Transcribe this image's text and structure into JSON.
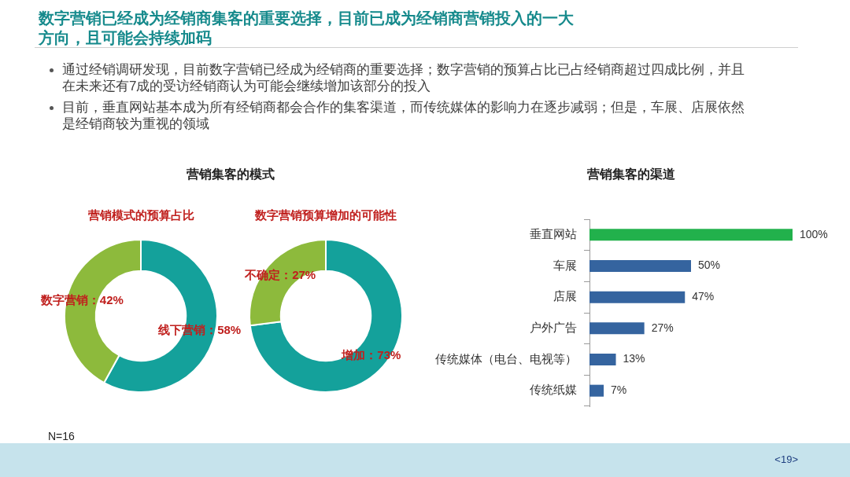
{
  "chart_data": [
    {
      "type": "donut",
      "title": "营销模式的预算占比",
      "categories": [
        "线下营销",
        "数字营销"
      ],
      "values": [
        58,
        42
      ],
      "colors": [
        "#14a19b",
        "#8dba3c"
      ],
      "value_labels": [
        "58%",
        "42%"
      ],
      "annotations": [
        "数字营销已经成为经销商集客的重要选择，目前已成为经销商营销投入的一大方向，且可能会持续加码",
        "通过经销调研发现，目前数字营销已经成为经销商的重要选择；数字营销的预算占比已占经销商超过四成比例，并且在未来还有7成的受访经销商认为可能会继续增加该部分的投入",
        "目前，垂直网站基本成为所有经销商都会合作的集客渠道，而传统媒体的影响力在逐步减弱；但是，车展、店展依然是经销商较为重视的领域",
        "营销集客的模式",
        "N=16",
        "<19>"
      ]
    },
    {
      "type": "donut",
      "title": "数字营销预算增加的可能性",
      "categories": [
        "增加",
        "不确定"
      ],
      "values": [
        73,
        27
      ],
      "colors": [
        "#14a19b",
        "#8dba3c"
      ],
      "value_labels": [
        "73%",
        "27%"
      ]
    },
    {
      "type": "bar",
      "orientation": "horizontal",
      "title": "营销集客的渠道",
      "categories": [
        "垂直网站",
        "车展",
        "店展",
        "户外广告",
        "传统媒体（电台、电视等）",
        "传统纸媒"
      ],
      "values": [
        100,
        50,
        47,
        27,
        13,
        7
      ],
      "colors": [
        "#22b14c",
        "#35649f",
        "#35649f",
        "#35649f",
        "#35649f",
        "#35649f"
      ],
      "value_labels": [
        "100%",
        "50%",
        "47%",
        "27%",
        "13%",
        "7%"
      ]
    }
  ]
}
